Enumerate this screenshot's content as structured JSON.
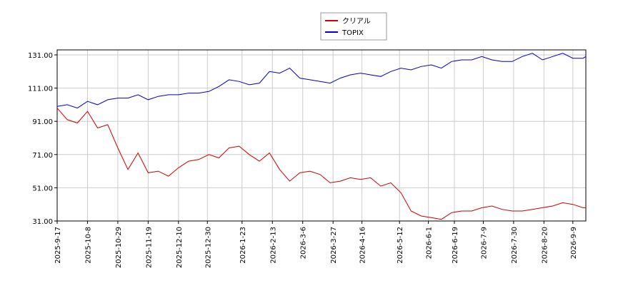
{
  "chart_data": {
    "type": "line",
    "x": [
      "2025-9-17",
      "2025-9-24",
      "2025-10-1",
      "2025-10-8",
      "2025-10-15",
      "2025-10-22",
      "2025-10-29",
      "2025-11-5",
      "2025-11-12",
      "2025-11-19",
      "2025-11-26",
      "2025-12-3",
      "2025-12-10",
      "2025-12-17",
      "2025-12-24",
      "2025-12-31",
      "2026-1-7",
      "2026-1-14",
      "2026-1-21",
      "2026-1-28",
      "2026-2-4",
      "2026-2-11",
      "2026-2-18",
      "2026-2-25",
      "2026-3-4",
      "2026-3-11",
      "2026-3-18",
      "2026-3-25",
      "2026-4-1",
      "2026-4-8",
      "2026-4-15",
      "2026-4-22",
      "2026-4-29",
      "2026-5-6",
      "2026-5-13",
      "2026-5-20",
      "2026-5-27",
      "2026-6-3",
      "2026-6-10",
      "2026-6-17",
      "2026-6-24",
      "2026-7-1",
      "2026-7-8",
      "2026-7-15",
      "2026-7-22",
      "2026-7-29",
      "2026-8-5",
      "2026-8-12",
      "2026-8-19",
      "2026-8-26",
      "2026-9-2",
      "2026-9-9",
      "2026-9-16",
      "2026-9-18"
    ],
    "series": [
      {
        "name": "クリアル",
        "color": "#cc0000",
        "values": [
          99,
          92,
          90,
          97,
          87,
          89,
          75,
          62,
          72,
          60,
          61,
          58,
          63,
          67,
          68,
          71,
          69,
          75,
          76,
          71,
          67,
          72,
          62,
          55,
          60,
          61,
          59,
          54,
          55,
          57,
          56,
          57,
          52,
          54,
          48,
          37,
          34,
          33,
          32,
          36,
          37,
          37,
          39,
          40,
          38,
          37,
          37,
          38,
          39,
          40,
          42,
          41,
          39,
          39
        ]
      },
      {
        "name": "TOPIX",
        "color": "#0000cc",
        "values": [
          100,
          101,
          99,
          103,
          101,
          104,
          105,
          105,
          107,
          104,
          106,
          107,
          107,
          108,
          108,
          109,
          112,
          116,
          115,
          113,
          114,
          121,
          120,
          123,
          117,
          116,
          115,
          114,
          117,
          119,
          120,
          119,
          118,
          121,
          123,
          122,
          124,
          125,
          123,
          127,
          128,
          128,
          130,
          128,
          127,
          127,
          130,
          132,
          128,
          130,
          132,
          129,
          129,
          130
        ]
      }
    ],
    "xlim": [
      "2025-9-17",
      "2026-9-18"
    ],
    "xticks": [
      "2025-9-17",
      "2025-10-8",
      "2025-10-29",
      "2025-11-19",
      "2025-12-10",
      "2025-12-30",
      "2026-1-23",
      "2026-2-13",
      "2026-3-6",
      "2026-3-27",
      "2026-4-16",
      "2026-5-12",
      "2026-6-1",
      "2026-6-19",
      "2026-7-9",
      "2026-7-30",
      "2026-8-20",
      "2026-9-9"
    ],
    "ylim": [
      31,
      134
    ],
    "yticks": [
      {
        "value": 31,
        "label": "31.00"
      },
      {
        "value": 51,
        "label": "51.00"
      },
      {
        "value": 71,
        "label": "71.00"
      },
      {
        "value": 91,
        "label": "91.00"
      },
      {
        "value": 111,
        "label": "111.00"
      },
      {
        "value": 131,
        "label": "131.00"
      }
    ],
    "grid": true,
    "legend": "top"
  }
}
